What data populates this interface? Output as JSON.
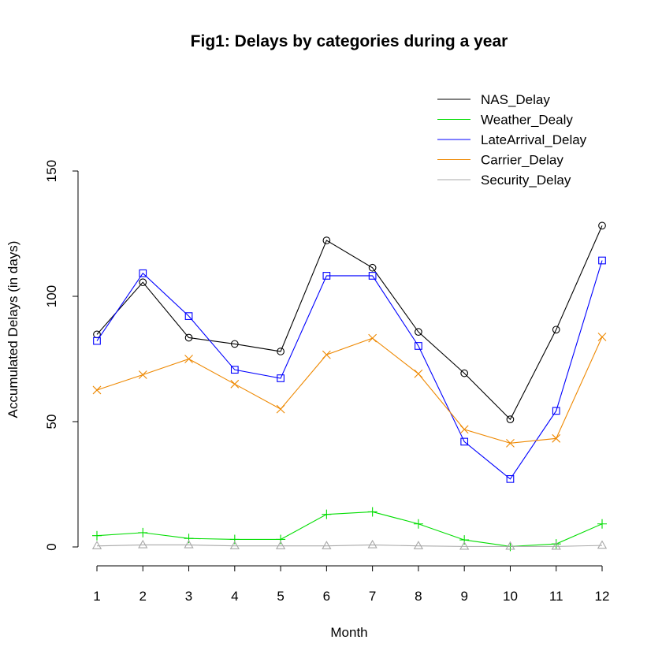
{
  "chart_data": {
    "type": "line",
    "title": "Fig1: Delays by categories during a year",
    "xlabel": "Month",
    "ylabel": "Accumulated Delays (in days)",
    "x": [
      1,
      2,
      3,
      4,
      5,
      6,
      7,
      8,
      9,
      10,
      11,
      12
    ],
    "x_ticks": [
      "1",
      "2",
      "3",
      "4",
      "5",
      "6",
      "7",
      "8",
      "9",
      "10",
      "11",
      "12"
    ],
    "y_ticks": [
      "0",
      "50",
      "100",
      "150"
    ],
    "ylim": [
      0,
      150
    ],
    "grid": false,
    "legend_position": "top-right",
    "series": [
      {
        "name": "NAS_Delay",
        "color": "#000000",
        "marker": "circle",
        "values": [
          84.8,
          105.6,
          83.5,
          81.0,
          78.0,
          122.3,
          111.4,
          85.8,
          69.3,
          50.9,
          86.7,
          128.2
        ]
      },
      {
        "name": "Weather_Dealy",
        "color": "#00dd00",
        "marker": "plus",
        "values": [
          4.5,
          5.7,
          3.4,
          3.0,
          3.0,
          13.0,
          14.0,
          9.2,
          2.8,
          0.2,
          1.2,
          9.2
        ]
      },
      {
        "name": "LateArrival_Delay",
        "color": "#0000ff",
        "marker": "square",
        "values": [
          82.2,
          109.2,
          92.1,
          70.7,
          67.3,
          108.2,
          108.2,
          80.2,
          42.0,
          27.1,
          54.3,
          114.3
        ]
      },
      {
        "name": "Carrier_Delay",
        "color": "#ee8800",
        "marker": "x",
        "values": [
          62.6,
          68.7,
          75.0,
          65.0,
          55.0,
          76.7,
          83.3,
          69.1,
          46.9,
          41.4,
          43.3,
          83.8
        ]
      },
      {
        "name": "Security_Delay",
        "color": "#a8a8a8",
        "marker": "triangle",
        "values": [
          0.4,
          0.8,
          0.8,
          0.4,
          0.4,
          0.4,
          0.8,
          0.4,
          0.2,
          0.2,
          0.2,
          0.6
        ]
      }
    ]
  }
}
